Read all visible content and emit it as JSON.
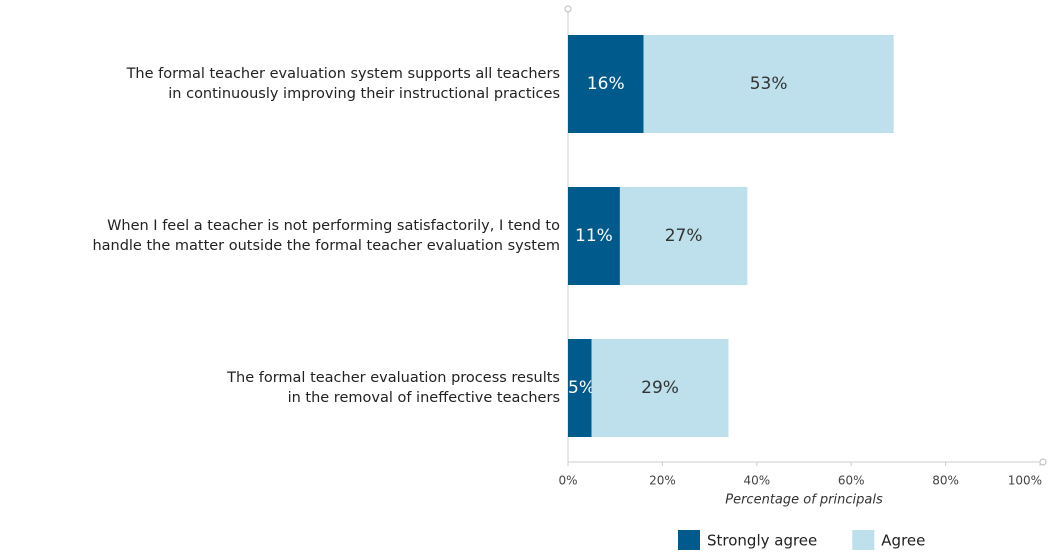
{
  "chart_data": {
    "type": "stacked-bar-horizontal",
    "categories": [
      "The formal teacher evaluation system supports all teachers\nin continuously improving their instructional practices",
      "When I feel a teacher is not performing satisfactorily, I tend to\nhandle the matter outside the formal teacher evaluation system",
      "The formal teacher evaluation process results\nin the removal of ineffective teachers"
    ],
    "series": [
      {
        "name": "Strongly agree",
        "color": "#005a8c",
        "values": [
          16,
          11,
          5
        ],
        "value_labels": [
          "16%",
          "11%",
          "5%"
        ]
      },
      {
        "name": "Agree",
        "color": "#bde0ec",
        "values": [
          53,
          27,
          29
        ],
        "value_labels": [
          "53%",
          "27%",
          "29%"
        ]
      }
    ],
    "xlabel": "Percentage of principals",
    "xlim": [
      0,
      100
    ],
    "xticks": [
      {
        "value": 0,
        "label": "0%"
      },
      {
        "value": 20,
        "label": "20%"
      },
      {
        "value": 40,
        "label": "40%"
      },
      {
        "value": 60,
        "label": "60%"
      },
      {
        "value": 80,
        "label": "80%"
      },
      {
        "value": 100,
        "label": "100%"
      }
    ],
    "legend": "bottom"
  }
}
